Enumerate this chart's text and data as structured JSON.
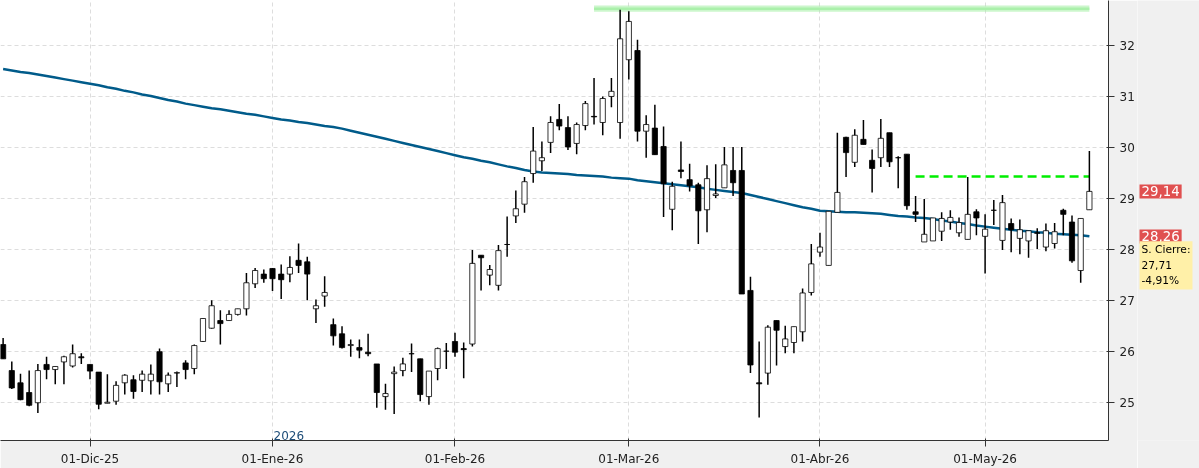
{
  "chart_data": {
    "type": "candlestick",
    "color": "#000000",
    "categories": [
      null,
      null,
      null,
      null,
      null,
      null,
      null,
      null,
      null,
      null,
      "01-Dic-25",
      null,
      null,
      null,
      null,
      null,
      null,
      null,
      null,
      null,
      null,
      null,
      null,
      null,
      null,
      null,
      null,
      null,
      null,
      null,
      null,
      "01-Ene-26",
      null,
      null,
      null,
      null,
      null,
      null,
      null,
      null,
      null,
      null,
      null,
      null,
      null,
      null,
      null,
      null,
      null,
      null,
      null,
      null,
      "01-Feb-26",
      null,
      null,
      null,
      null,
      null,
      null,
      null,
      null,
      null,
      null,
      null,
      null,
      null,
      null,
      null,
      null,
      null,
      null,
      null,
      "01-Mar-26",
      null,
      null,
      null,
      null,
      null,
      null,
      null,
      null,
      null,
      null,
      null,
      null,
      null,
      null,
      null,
      null,
      null,
      null,
      null,
      null,
      null,
      "01-Abr-26",
      null,
      null,
      null,
      null,
      null,
      null,
      null,
      null,
      null,
      null,
      null,
      null,
      null,
      null,
      null,
      null,
      null,
      null,
      "01-May-26",
      null,
      null,
      null,
      null,
      null,
      null,
      null,
      null,
      null,
      null,
      null,
      null
    ],
    "ohlc": [
      [
        26.14,
        26.27,
        25.86,
        25.86
      ],
      [
        25.63,
        25.81,
        25.27,
        25.29
      ],
      [
        25.39,
        25.57,
        25.05,
        25.06
      ],
      [
        25.2,
        25.63,
        24.93,
        24.95
      ],
      [
        25.0,
        25.76,
        24.8,
        25.63
      ],
      [
        25.75,
        25.9,
        25.46,
        25.65
      ],
      [
        25.65,
        25.71,
        25.36,
        25.71
      ],
      [
        25.8,
        25.92,
        25.36,
        25.9
      ],
      [
        25.72,
        26.14,
        25.69,
        25.96
      ],
      [
        25.9,
        25.97,
        25.76,
        25.88
      ],
      [
        25.75,
        25.75,
        25.46,
        25.62
      ],
      [
        25.6,
        25.6,
        24.87,
        24.97
      ],
      [
        24.99,
        25.56,
        24.99,
        25.01
      ],
      [
        25.03,
        25.42,
        24.96,
        25.34
      ],
      [
        25.39,
        25.56,
        25.16,
        25.54
      ],
      [
        25.45,
        25.54,
        25.08,
        25.22
      ],
      [
        25.44,
        25.63,
        25.21,
        25.56
      ],
      [
        25.43,
        25.75,
        25.16,
        25.56
      ],
      [
        26.0,
        26.06,
        25.16,
        25.41
      ],
      [
        25.37,
        25.59,
        25.21,
        25.54
      ],
      [
        25.58,
        25.61,
        25.31,
        25.59
      ],
      [
        25.78,
        25.83,
        25.46,
        25.65
      ],
      [
        25.67,
        26.14,
        25.56,
        26.12
      ],
      [
        26.2,
        26.65,
        26.19,
        26.65
      ],
      [
        26.46,
        27.01,
        26.45,
        26.9
      ],
      [
        26.61,
        26.81,
        26.14,
        26.55
      ],
      [
        26.61,
        26.81,
        26.61,
        26.73
      ],
      [
        26.73,
        26.84,
        26.71,
        26.84
      ],
      [
        26.84,
        27.54,
        26.71,
        27.35
      ],
      [
        27.33,
        27.64,
        27.25,
        27.59
      ],
      [
        27.52,
        27.61,
        27.35,
        27.43
      ],
      [
        27.63,
        27.64,
        27.19,
        27.43
      ],
      [
        27.52,
        27.71,
        27.03,
        27.41
      ],
      [
        27.52,
        27.87,
        27.36,
        27.65
      ],
      [
        27.79,
        28.12,
        27.54,
        27.69
      ],
      [
        27.76,
        27.86,
        27.01,
        27.52
      ],
      [
        26.84,
        27.02,
        26.56,
        26.9
      ],
      [
        27.09,
        27.48,
        26.88,
        27.16
      ],
      [
        26.53,
        26.65,
        26.12,
        26.31
      ],
      [
        26.35,
        26.5,
        26.06,
        26.08
      ],
      [
        26.12,
        26.24,
        25.9,
        26.14
      ],
      [
        26.08,
        26.24,
        25.87,
        26.03
      ],
      [
        25.99,
        26.35,
        25.91,
        25.96
      ],
      [
        25.76,
        25.76,
        24.9,
        25.2
      ],
      [
        25.12,
        25.37,
        24.86,
        25.18
      ],
      [
        25.57,
        25.71,
        24.78,
        25.6
      ],
      [
        25.63,
        25.88,
        25.52,
        25.76
      ],
      [
        25.96,
        26.16,
        25.6,
        25.96
      ],
      [
        25.86,
        25.86,
        25.03,
        25.16
      ],
      [
        25.12,
        25.62,
        24.96,
        25.62
      ],
      [
        25.67,
        26.08,
        25.44,
        26.06
      ],
      [
        26.01,
        26.17,
        25.66,
        26.01
      ],
      [
        26.2,
        26.37,
        25.9,
        25.99
      ],
      [
        26.06,
        26.18,
        25.48,
        26.04
      ],
      [
        26.15,
        27.99,
        26.1,
        27.73
      ],
      [
        27.89,
        27.89,
        27.2,
        27.84
      ],
      [
        27.5,
        27.7,
        27.3,
        27.61
      ],
      [
        27.3,
        28.09,
        27.2,
        27.98
      ],
      [
        28.1,
        28.65,
        27.86,
        28.1
      ],
      [
        28.66,
        29.16,
        28.52,
        28.8
      ],
      [
        28.89,
        29.42,
        28.72,
        29.33
      ],
      [
        29.49,
        30.4,
        29.31,
        29.93
      ],
      [
        29.74,
        30.12,
        29.54,
        29.8
      ],
      [
        30.1,
        30.61,
        29.89,
        30.49
      ],
      [
        30.55,
        30.85,
        30.34,
        30.42
      ],
      [
        30.39,
        30.61,
        29.95,
        30.01
      ],
      [
        30.08,
        30.49,
        29.87,
        30.45
      ],
      [
        30.43,
        30.91,
        30.34,
        30.86
      ],
      [
        30.61,
        31.36,
        30.45,
        30.6
      ],
      [
        30.49,
        31.0,
        30.24,
        30.96
      ],
      [
        31.0,
        31.36,
        30.79,
        31.1
      ],
      [
        30.49,
        32.7,
        30.17,
        32.13
      ],
      [
        31.72,
        32.67,
        31.33,
        32.47
      ],
      [
        31.9,
        32.11,
        30.12,
        30.32
      ],
      [
        30.32,
        30.63,
        29.8,
        30.45
      ],
      [
        30.38,
        30.84,
        29.86,
        29.86
      ],
      [
        30.02,
        30.41,
        28.64,
        29.29
      ],
      [
        28.79,
        29.33,
        28.38,
        29.24
      ],
      [
        29.56,
        30.12,
        29.4,
        29.53
      ],
      [
        29.37,
        29.68,
        29.14,
        29.25
      ],
      [
        29.27,
        29.31,
        28.11,
        28.76
      ],
      [
        28.78,
        29.65,
        28.34,
        29.39
      ],
      [
        29.06,
        29.67,
        29.01,
        29.09
      ],
      [
        29.21,
        30.01,
        29.21,
        29.66
      ],
      [
        29.55,
        30.01,
        29.05,
        29.31
      ],
      [
        29.55,
        30.01,
        27.13,
        27.13
      ],
      [
        27.2,
        27.47,
        25.58,
        25.74
      ],
      [
        25.39,
        26.2,
        24.71,
        25.37
      ],
      [
        25.58,
        26.52,
        25.35,
        26.48
      ],
      [
        26.61,
        26.61,
        25.73,
        26.42
      ],
      [
        26.1,
        26.51,
        25.97,
        26.25
      ],
      [
        26.18,
        26.49,
        25.97,
        26.49
      ],
      [
        26.39,
        27.24,
        26.2,
        27.15
      ],
      [
        27.16,
        28.11,
        27.1,
        27.72
      ],
      [
        27.95,
        28.33,
        27.86,
        28.05
      ],
      [
        27.69,
        28.75,
        27.69,
        28.75
      ],
      [
        28.73,
        30.29,
        28.73,
        29.12
      ],
      [
        30.2,
        30.21,
        29.42,
        29.9
      ],
      [
        29.71,
        30.36,
        29.62,
        30.24
      ],
      [
        30.16,
        30.54,
        30.06,
        30.06
      ],
      [
        29.75,
        29.96,
        29.12,
        29.59
      ],
      [
        29.8,
        30.56,
        29.62,
        30.18
      ],
      [
        30.29,
        30.29,
        29.62,
        29.72
      ],
      [
        29.8,
        29.83,
        29.2,
        29.8
      ],
      [
        29.87,
        29.87,
        28.78,
        28.86
      ],
      [
        28.74,
        29.05,
        28.54,
        28.69
      ],
      [
        28.15,
        28.99,
        28.15,
        28.3
      ],
      [
        28.17,
        28.62,
        28.17,
        28.62
      ],
      [
        28.36,
        28.73,
        28.17,
        28.61
      ],
      [
        28.54,
        28.77,
        28.39,
        28.63
      ],
      [
        28.33,
        28.63,
        28.25,
        28.53
      ],
      [
        28.2,
        29.42,
        28.2,
        28.69
      ],
      [
        28.74,
        28.79,
        28.28,
        28.62
      ],
      [
        28.26,
        28.69,
        27.53,
        28.4
      ],
      [
        28.77,
        28.97,
        28.48,
        28.77
      ],
      [
        28.18,
        29.07,
        27.99,
        28.92
      ],
      [
        28.51,
        28.61,
        27.95,
        28.39
      ],
      [
        28.22,
        28.59,
        27.91,
        28.39
      ],
      [
        28.17,
        28.37,
        27.84,
        28.37
      ],
      [
        28.33,
        28.42,
        28.01,
        28.32
      ],
      [
        28.05,
        28.51,
        27.97,
        28.37
      ],
      [
        28.12,
        28.52,
        28.02,
        28.35
      ],
      [
        28.77,
        28.8,
        28.28,
        28.69
      ],
      [
        28.54,
        28.67,
        27.74,
        27.78
      ],
      [
        27.59,
        28.61,
        27.35,
        28.61
      ],
      [
        28.78,
        29.93,
        28.78,
        29.14
      ]
    ],
    "series": [
      {
        "type": "line",
        "color": "#005b8a",
        "values": [
          31.54,
          31.51,
          31.48,
          31.46,
          31.43,
          31.4,
          31.37,
          31.34,
          31.31,
          31.28,
          31.25,
          31.22,
          31.18,
          31.15,
          31.11,
          31.08,
          31.04,
          31.01,
          30.97,
          30.93,
          30.9,
          30.86,
          30.83,
          30.8,
          30.77,
          30.75,
          30.72,
          30.69,
          30.66,
          30.64,
          30.61,
          30.58,
          30.55,
          30.53,
          30.5,
          30.48,
          30.45,
          30.42,
          30.4,
          30.37,
          30.33,
          30.29,
          30.25,
          30.21,
          30.17,
          30.13,
          30.09,
          30.05,
          30.01,
          29.97,
          29.93,
          29.89,
          29.85,
          29.81,
          29.78,
          29.74,
          29.71,
          29.67,
          29.63,
          29.6,
          29.56,
          29.53,
          29.51,
          29.5,
          29.49,
          29.48,
          29.46,
          29.45,
          29.44,
          29.43,
          29.41,
          29.4,
          29.39,
          29.36,
          29.34,
          29.32,
          29.3,
          29.28,
          29.26,
          29.24,
          29.22,
          29.19,
          29.17,
          29.15,
          29.13,
          29.11,
          29.07,
          29.03,
          28.99,
          28.95,
          28.91,
          28.87,
          28.83,
          28.8,
          28.76,
          28.75,
          28.74,
          28.73,
          28.73,
          28.72,
          28.71,
          28.7,
          28.68,
          28.66,
          28.65,
          28.63,
          28.62,
          28.6,
          28.57,
          28.55,
          28.52,
          28.5,
          28.47,
          28.45,
          28.43,
          28.41,
          28.39,
          28.37,
          28.36,
          28.34,
          28.33,
          28.31,
          28.3,
          28.29,
          28.28,
          28.26
        ]
      },
      {
        "type": "line",
        "color": "#aaf0aa",
        "values": [
          null,
          null,
          null,
          null,
          null,
          null,
          null,
          null,
          null,
          null,
          null,
          null,
          null,
          null,
          null,
          null,
          null,
          null,
          null,
          null,
          null,
          null,
          null,
          null,
          null,
          null,
          null,
          null,
          null,
          null,
          null,
          null,
          null,
          null,
          null,
          null,
          null,
          null,
          null,
          null,
          null,
          null,
          null,
          null,
          null,
          null,
          null,
          null,
          null,
          null,
          null,
          null,
          null,
          null,
          null,
          null,
          null,
          null,
          null,
          null,
          null,
          null,
          null,
          null,
          null,
          null,
          null,
          null,
          32.72,
          32.72,
          32.72,
          32.72,
          32.72,
          32.72,
          32.72,
          32.72,
          32.72,
          32.72,
          32.72,
          32.72,
          32.72,
          32.72,
          32.72,
          32.72,
          32.72,
          32.72,
          32.72,
          32.72,
          32.72,
          32.72,
          32.72,
          32.72,
          32.72,
          32.72,
          32.72,
          32.72,
          32.72,
          32.72,
          32.72,
          32.72,
          32.72,
          32.72,
          32.72,
          32.72,
          32.72,
          32.72,
          32.72,
          32.72,
          32.72,
          32.72,
          32.72,
          32.72,
          32.72,
          32.72,
          32.72,
          32.72,
          32.72,
          32.72,
          32.72,
          32.72,
          32.72,
          32.72,
          32.72,
          32.72,
          32.72,
          32.72
        ],
        "lower": [
          null,
          null,
          null,
          null,
          null,
          null,
          null,
          null,
          null,
          null,
          null,
          null,
          null,
          null,
          null,
          null,
          null,
          null,
          null,
          null,
          null,
          null,
          null,
          null,
          null,
          null,
          null,
          null,
          null,
          null,
          null,
          null,
          null,
          null,
          null,
          null,
          null,
          null,
          null,
          null,
          null,
          null,
          null,
          null,
          null,
          null,
          null,
          null,
          null,
          null,
          null,
          null,
          null,
          null,
          null,
          null,
          null,
          null,
          null,
          null,
          null,
          null,
          null,
          null,
          null,
          null,
          null,
          null,
          32.66,
          32.66,
          32.66,
          32.66,
          32.66,
          32.66,
          32.66,
          32.66,
          32.66,
          32.66,
          32.66,
          32.66,
          32.66,
          32.66,
          32.66,
          32.66,
          32.66,
          32.66,
          32.66,
          32.66,
          32.66,
          32.66,
          32.66,
          32.66,
          32.66,
          32.66,
          32.66,
          32.66,
          32.66,
          32.66,
          32.66,
          32.66,
          32.66,
          32.66,
          32.66,
          32.66,
          32.66,
          32.66,
          32.66,
          32.66,
          32.66,
          32.66,
          32.66,
          32.66,
          32.66,
          32.66,
          32.66,
          32.66,
          32.66,
          32.66,
          32.66,
          32.66,
          32.66,
          32.66,
          32.66,
          32.66,
          32.66,
          32.66
        ],
        "upper": [
          null,
          null,
          null,
          null,
          null,
          null,
          null,
          null,
          null,
          null,
          null,
          null,
          null,
          null,
          null,
          null,
          null,
          null,
          null,
          null,
          null,
          null,
          null,
          null,
          null,
          null,
          null,
          null,
          null,
          null,
          null,
          null,
          null,
          null,
          null,
          null,
          null,
          null,
          null,
          null,
          null,
          null,
          null,
          null,
          null,
          null,
          null,
          null,
          null,
          null,
          null,
          null,
          null,
          null,
          null,
          null,
          null,
          null,
          null,
          null,
          null,
          null,
          null,
          null,
          null,
          null,
          null,
          null,
          32.78,
          32.78,
          32.78,
          32.78,
          32.78,
          32.78,
          32.78,
          32.78,
          32.78,
          32.78,
          32.78,
          32.78,
          32.78,
          32.78,
          32.78,
          32.78,
          32.78,
          32.78,
          32.78,
          32.78,
          32.78,
          32.78,
          32.78,
          32.78,
          32.78,
          32.78,
          32.78,
          32.78,
          32.78,
          32.78,
          32.78,
          32.78,
          32.78,
          32.78,
          32.78,
          32.78,
          32.78,
          32.78,
          32.78,
          32.78,
          32.78,
          32.78,
          32.78,
          32.78,
          32.78,
          32.78,
          32.78,
          32.78,
          32.78,
          32.78,
          32.78,
          32.78,
          32.78,
          32.78,
          32.78,
          32.78,
          32.78,
          32.78
        ]
      },
      {
        "type": "line",
        "color": "#00ee00",
        "line_style": "dashed",
        "values": [
          null,
          null,
          null,
          null,
          null,
          null,
          null,
          null,
          null,
          null,
          null,
          null,
          null,
          null,
          null,
          null,
          null,
          null,
          null,
          null,
          null,
          null,
          null,
          null,
          null,
          null,
          null,
          null,
          null,
          null,
          null,
          null,
          null,
          null,
          null,
          null,
          null,
          null,
          null,
          null,
          null,
          null,
          null,
          null,
          null,
          null,
          null,
          null,
          null,
          null,
          null,
          null,
          null,
          null,
          null,
          null,
          null,
          null,
          null,
          null,
          null,
          null,
          null,
          null,
          null,
          null,
          null,
          null,
          null,
          null,
          null,
          null,
          null,
          null,
          null,
          null,
          null,
          null,
          null,
          null,
          null,
          null,
          null,
          null,
          null,
          null,
          null,
          null,
          null,
          null,
          null,
          null,
          null,
          null,
          null,
          null,
          null,
          null,
          null,
          null,
          null,
          null,
          null,
          null,
          null,
          29.43,
          29.43,
          29.43,
          29.43,
          29.43,
          29.43,
          29.43,
          29.43,
          29.43,
          29.43,
          29.43,
          29.43,
          29.43,
          29.43,
          29.43,
          29.43,
          29.43,
          29.43,
          29.43,
          29.43,
          29.43
        ]
      }
    ],
    "ylim": [
      24.26,
      32.88
    ],
    "yticks": [
      25,
      26,
      27,
      28,
      29,
      30,
      31,
      32
    ],
    "grid": true,
    "annotations": [
      "2026",
      "29,14",
      "28,26",
      "S. Cierre:\n27,71\n-4,91%"
    ]
  }
}
